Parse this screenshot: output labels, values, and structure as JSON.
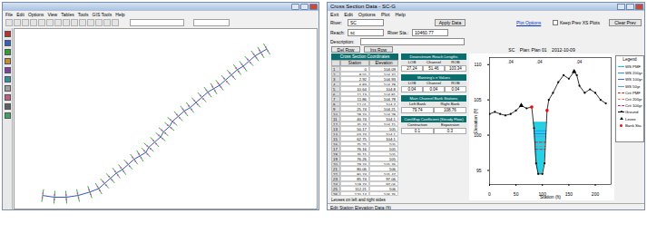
{
  "plan_window": {
    "menu": [
      "File",
      "Edit",
      "Options",
      "View",
      "Tables",
      "Tools",
      "GIS Tools",
      "Help"
    ],
    "river_path": [
      [
        8,
        6
      ],
      [
        12,
        5
      ],
      [
        16,
        5
      ],
      [
        20,
        6
      ],
      [
        24,
        8
      ],
      [
        27,
        10
      ],
      [
        29,
        13
      ],
      [
        31,
        16
      ],
      [
        33,
        19
      ],
      [
        35,
        21
      ],
      [
        37,
        24
      ],
      [
        39,
        27
      ],
      [
        41,
        29
      ],
      [
        43,
        31
      ],
      [
        44,
        34
      ],
      [
        46,
        37
      ],
      [
        48,
        40
      ],
      [
        49,
        43
      ],
      [
        51,
        46
      ],
      [
        52,
        49
      ],
      [
        54,
        52
      ],
      [
        56,
        55
      ],
      [
        58,
        57
      ],
      [
        60,
        60
      ],
      [
        62,
        63
      ],
      [
        64,
        66
      ],
      [
        66,
        68
      ],
      [
        68,
        70
      ],
      [
        70,
        73
      ],
      [
        72,
        76
      ],
      [
        74,
        79
      ],
      [
        76,
        81
      ],
      [
        78,
        84
      ],
      [
        80,
        87
      ],
      [
        82,
        89
      ],
      [
        84,
        91
      ]
    ]
  },
  "xs_window": {
    "title": "Cross Section Data - SC-G",
    "menu": [
      "Exit",
      "Edit",
      "Options",
      "Plot",
      "Help"
    ],
    "river_label": "River:",
    "river": "SC",
    "reach_label": "Reach:",
    "reach": "sc",
    "river_sta_label": "River Sta.:",
    "river_sta": "10460.77",
    "apply_data": "Apply Data",
    "plot_options": "Plot Options",
    "keep_prev": "Keep Prev XS Plots",
    "clear_prev": "Clear Prev",
    "description_label": "Description:",
    "buttons": [
      "Del Row",
      "Ins Row"
    ],
    "table": {
      "title": "Cross Section Coordinates",
      "columns": [
        "Station",
        "Elevation"
      ],
      "rows": [
        [
          1,
          0,
          104.09
        ],
        [
          2,
          8.55,
          104.32
        ],
        [
          3,
          2.92,
          104.93
        ],
        [
          4,
          6.83,
          104.78
        ],
        [
          5,
          10.64,
          104.8
        ],
        [
          6,
          11.13,
          104.81
        ],
        [
          7,
          11.86,
          104.78
        ],
        [
          8,
          12.01,
          104.7
        ],
        [
          9,
          25.74,
          104.21
        ],
        [
          10,
          28.74,
          104.28
        ],
        [
          11,
          40.74,
          104.1
        ],
        [
          12,
          45.74,
          104.15
        ],
        [
          13,
          50.17,
          105
        ],
        [
          14,
          63.74,
          104.1
        ],
        [
          15,
          62.75,
          104.1
        ],
        [
          16,
          75.25,
          105
        ],
        [
          17,
          76.16,
          105
        ],
        [
          18,
          76.15,
          105
        ],
        [
          19,
          76.26,
          105
        ],
        [
          20,
          79.74,
          105.76
        ],
        [
          21,
          80.06,
          106
        ],
        [
          22,
          80.74,
          105.47
        ],
        [
          23,
          85.74,
          97.06
        ],
        [
          24,
          109.74,
          97.06
        ],
        [
          25,
          112.21,
          106
        ],
        [
          26,
          120.14,
          106.76
        ]
      ]
    },
    "note": "Levees on left and right sides",
    "panels": [
      {
        "title": "Downstream Reach Lengths",
        "labels": [
          "LOB",
          "Channel",
          "ROB"
        ],
        "values": [
          27.24,
          51.46,
          103.34
        ]
      },
      {
        "title": "Manning's n Values",
        "labels": [
          "LOB",
          "Channel",
          "ROB"
        ],
        "values": [
          0.04,
          0.04,
          0.04
        ]
      },
      {
        "title": "Main Channel Bank Stations",
        "labels": [
          "Left Bank",
          "Right Bank"
        ],
        "values": [
          79.74,
          108.76
        ]
      },
      {
        "title": "Cont\\Exp Coefficient (Steady Flow)",
        "labels": [
          "Contraction",
          "Expansion"
        ],
        "values": [
          0.1,
          0.3
        ]
      }
    ],
    "status": "Edit Station Elevation Data (ft)"
  },
  "chart_data": {
    "type": "line",
    "title": "SC    Plan: Plan 01    2012-10-09",
    "x_label": "Station (ft)",
    "y_label": "Elevation (ft)",
    "legend_title": "Legend",
    "xlim": [
      0,
      230
    ],
    "xticks": [
      0,
      50,
      100,
      150,
      200
    ],
    "ylim": [
      93,
      111
    ],
    "yticks": [
      95,
      100,
      105,
      110
    ],
    "n_labels": [
      ".04",
      ".04",
      ".04"
    ],
    "series": [
      {
        "name": "WS PMF",
        "color": "#00c8e0",
        "elevation": 101.8,
        "line_style": "solid"
      },
      {
        "name": "WS 200yr",
        "color": "#1e90ff",
        "elevation": 100.6,
        "line_style": "solid"
      },
      {
        "name": "WS 100yr",
        "color": "#4169e1",
        "elevation": 100.2,
        "line_style": "solid"
      },
      {
        "name": "WS 50yr",
        "color": "#6495ed",
        "elevation": 99.8,
        "line_style": "solid"
      },
      {
        "name": "Crit PMF",
        "color": "#ff0000",
        "elevation": 99.0,
        "line_style": "dashed"
      },
      {
        "name": "Crit 200yr",
        "color": "#ff6347",
        "elevation": 98.4,
        "line_style": "dashed"
      },
      {
        "name": "Crit 100yr",
        "color": "#dc143c",
        "elevation": 98.0,
        "line_style": "dashed"
      }
    ],
    "ground": {
      "name": "Ground",
      "color": "#000000",
      "marker": "circle",
      "x": [
        0,
        10,
        20,
        30,
        40,
        50,
        60,
        70,
        79.74,
        84,
        88,
        92,
        100,
        104,
        108.76,
        112,
        120,
        130,
        140,
        150,
        160,
        165,
        170,
        180,
        190,
        200,
        210,
        220
      ],
      "y": [
        103,
        103.3,
        103,
        102.8,
        103,
        103.5,
        104.2,
        103.8,
        104,
        101,
        96,
        94.5,
        94.5,
        96,
        103.5,
        105,
        106,
        107.5,
        108.5,
        108,
        109,
        108.5,
        107,
        106,
        106.5,
        106,
        105,
        104.5
      ]
    },
    "levees": {
      "name": "Levee",
      "color": "#000000",
      "marker": "triangle",
      "x": [
        60,
        160
      ]
    },
    "bank_stations": {
      "name": "Bank Sta.",
      "color": "#ff0000",
      "marker": "circle",
      "x": [
        79.74,
        108.76
      ]
    }
  }
}
